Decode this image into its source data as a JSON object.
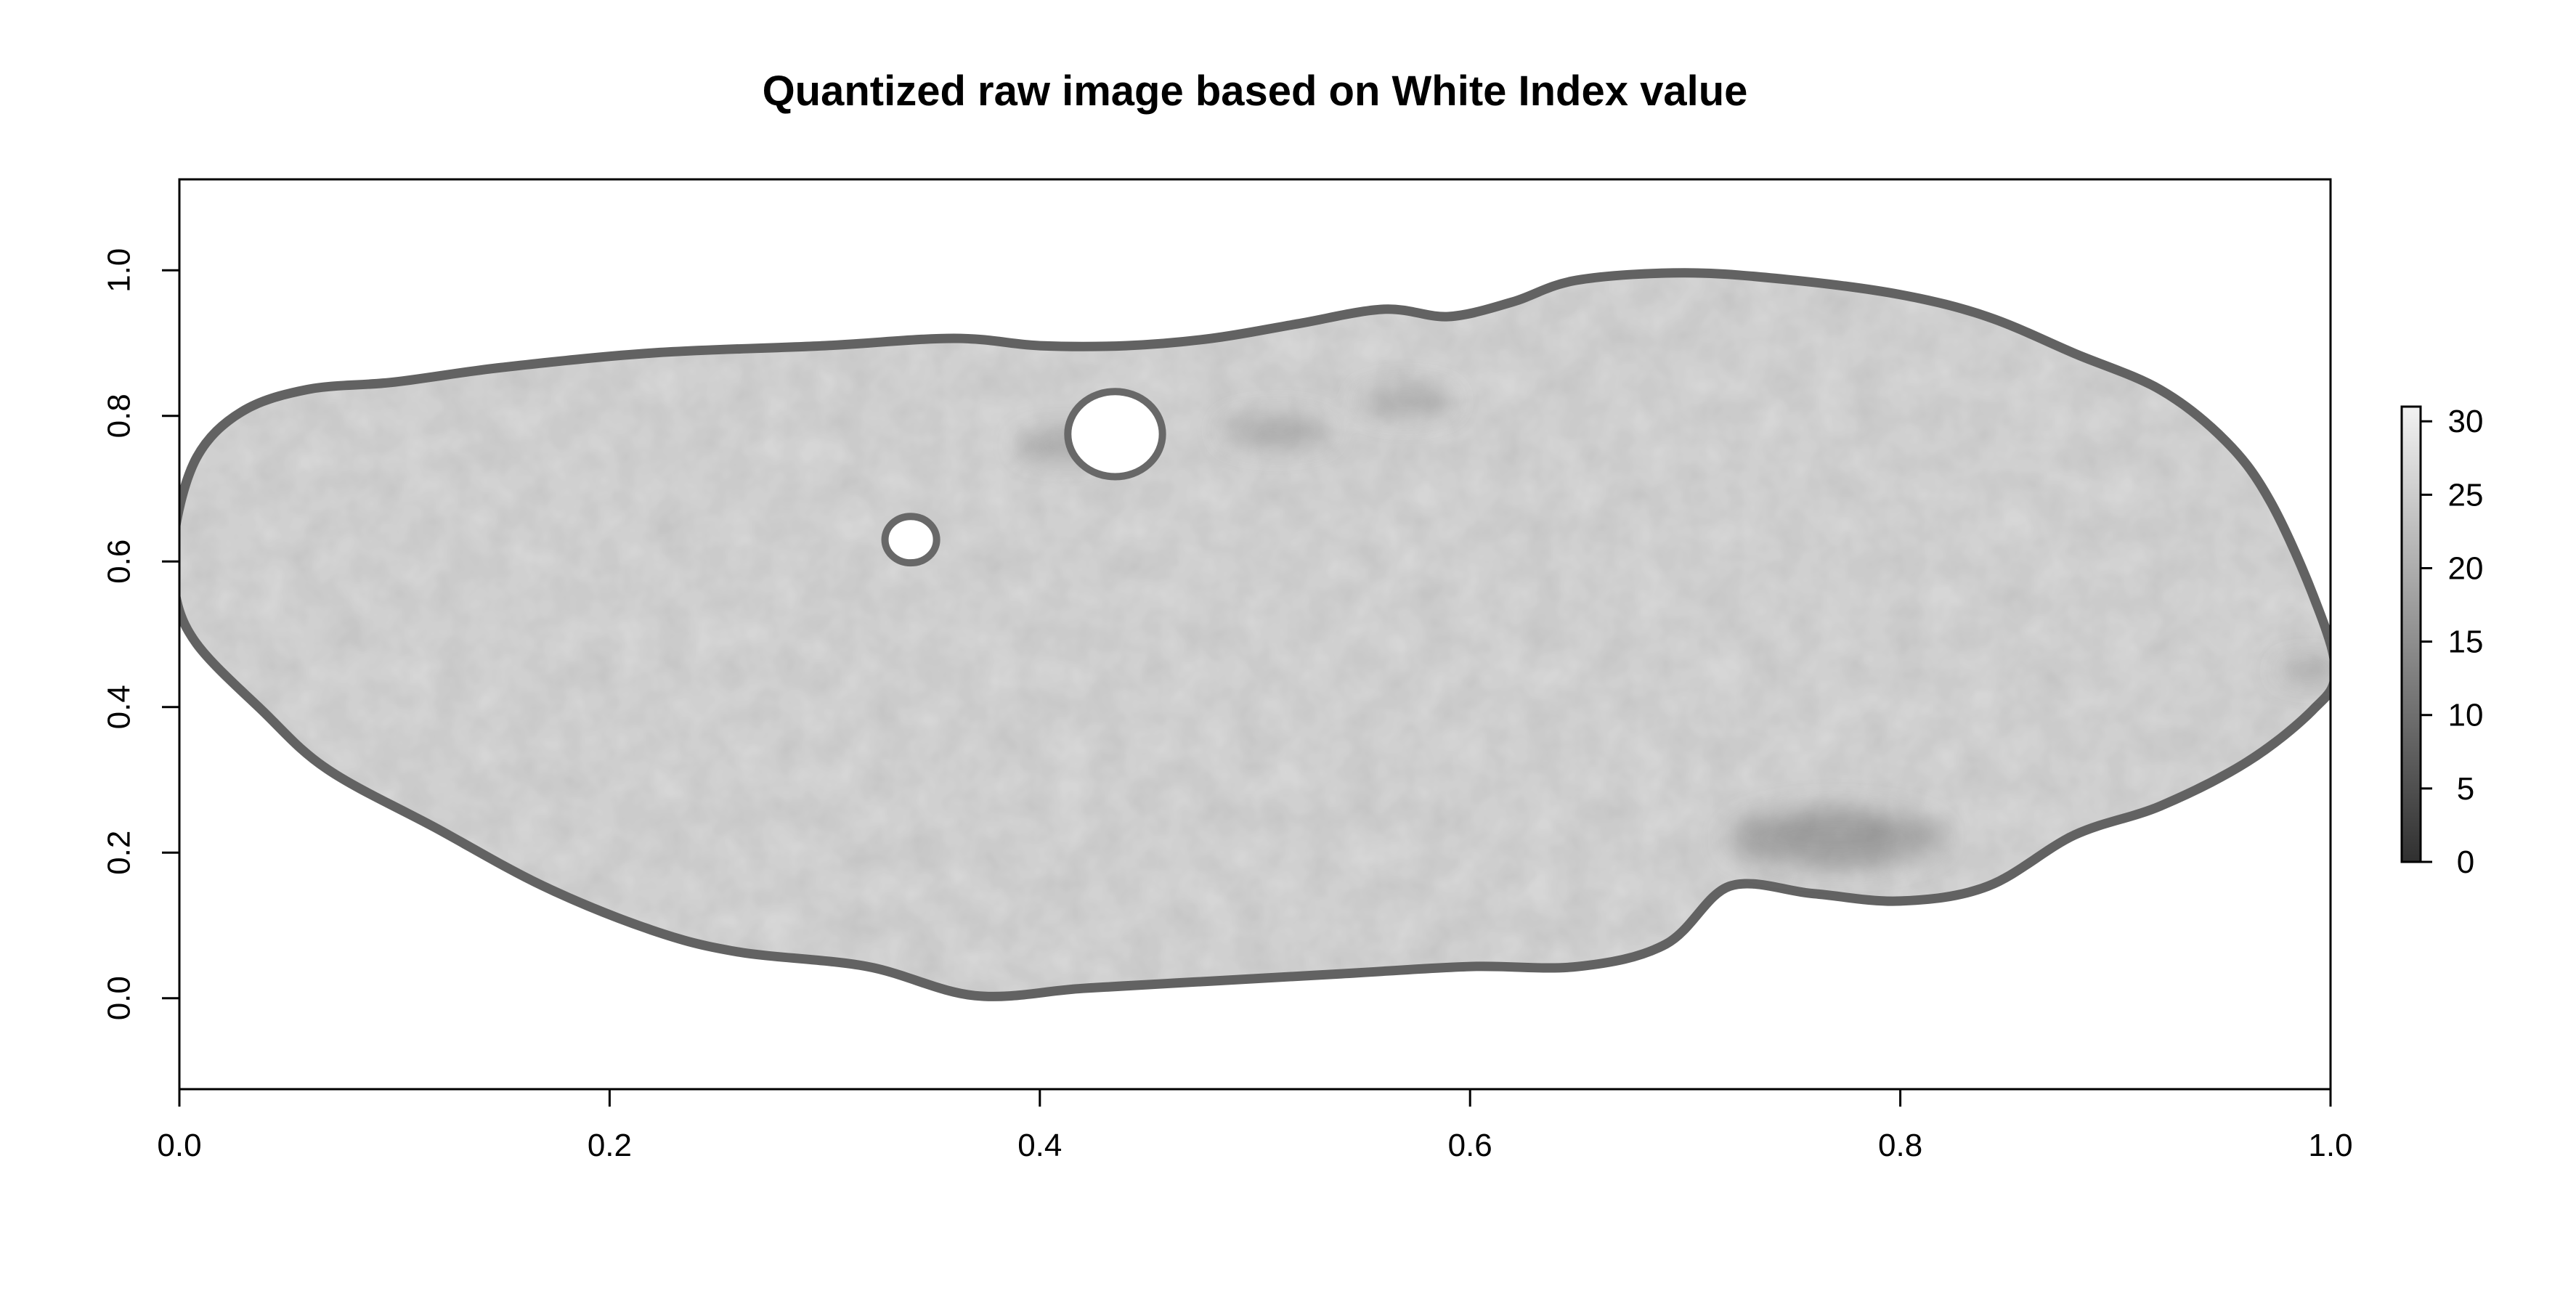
{
  "chart_data": {
    "type": "heatmap",
    "title": "Quantized raw image based on White Index value",
    "xlabel": "",
    "ylabel": "",
    "xlim": [
      0.0,
      1.0
    ],
    "ylim": [
      -0.125,
      1.125
    ],
    "x_ticks": [
      "0.0",
      "0.2",
      "0.4",
      "0.6",
      "0.8",
      "1.0"
    ],
    "y_ticks": [
      "0.0",
      "0.2",
      "0.4",
      "0.6",
      "0.8",
      "1.0"
    ],
    "colorbar": {
      "range": [
        0,
        31
      ],
      "ticks": [
        "0",
        "5",
        "10",
        "15",
        "20",
        "25",
        "30"
      ],
      "low_color": "#303030",
      "high_color": "#f2f2f2"
    },
    "grid": false,
    "shape": {
      "description_values_in_data_units": true,
      "outline": [
        [
          0.0,
          0.64
        ],
        [
          0.01,
          0.74
        ],
        [
          0.03,
          0.8
        ],
        [
          0.06,
          0.83
        ],
        [
          0.1,
          0.84
        ],
        [
          0.15,
          0.86
        ],
        [
          0.22,
          0.88
        ],
        [
          0.3,
          0.89
        ],
        [
          0.36,
          0.9
        ],
        [
          0.4,
          0.89
        ],
        [
          0.44,
          0.89
        ],
        [
          0.48,
          0.9
        ],
        [
          0.52,
          0.92
        ],
        [
          0.56,
          0.94
        ],
        [
          0.59,
          0.93
        ],
        [
          0.62,
          0.95
        ],
        [
          0.65,
          0.98
        ],
        [
          0.7,
          0.99
        ],
        [
          0.75,
          0.98
        ],
        [
          0.8,
          0.96
        ],
        [
          0.84,
          0.93
        ],
        [
          0.88,
          0.88
        ],
        [
          0.92,
          0.83
        ],
        [
          0.95,
          0.76
        ],
        [
          0.97,
          0.68
        ],
        [
          0.99,
          0.55
        ],
        [
          1.0,
          0.45
        ],
        [
          0.99,
          0.4
        ],
        [
          0.96,
          0.33
        ],
        [
          0.92,
          0.27
        ],
        [
          0.88,
          0.23
        ],
        [
          0.84,
          0.16
        ],
        [
          0.8,
          0.14
        ],
        [
          0.76,
          0.15
        ],
        [
          0.72,
          0.16
        ],
        [
          0.69,
          0.08
        ],
        [
          0.65,
          0.05
        ],
        [
          0.6,
          0.05
        ],
        [
          0.54,
          0.04
        ],
        [
          0.48,
          0.03
        ],
        [
          0.42,
          0.02
        ],
        [
          0.37,
          0.01
        ],
        [
          0.32,
          0.05
        ],
        [
          0.26,
          0.07
        ],
        [
          0.22,
          0.1
        ],
        [
          0.17,
          0.16
        ],
        [
          0.12,
          0.24
        ],
        [
          0.07,
          0.32
        ],
        [
          0.04,
          0.4
        ],
        [
          0.01,
          0.49
        ],
        [
          0.0,
          0.56
        ]
      ],
      "holes": [
        {
          "cx": 0.435,
          "cy": 0.775,
          "r": 0.022
        },
        {
          "cx": 0.34,
          "cy": 0.63,
          "r": 0.012
        }
      ],
      "dark_regions": [
        {
          "cx": 0.51,
          "cy": 0.78,
          "r": 0.025,
          "value": 14
        },
        {
          "cx": 0.57,
          "cy": 0.82,
          "r": 0.022,
          "value": 14
        },
        {
          "cx": 0.77,
          "cy": 0.22,
          "r": 0.05,
          "value": 12
        },
        {
          "cx": 0.41,
          "cy": 0.76,
          "r": 0.02,
          "value": 12
        },
        {
          "cx": 0.99,
          "cy": 0.45,
          "r": 0.015,
          "value": 10
        }
      ],
      "interior_value": 27,
      "edge_value": 8
    }
  }
}
